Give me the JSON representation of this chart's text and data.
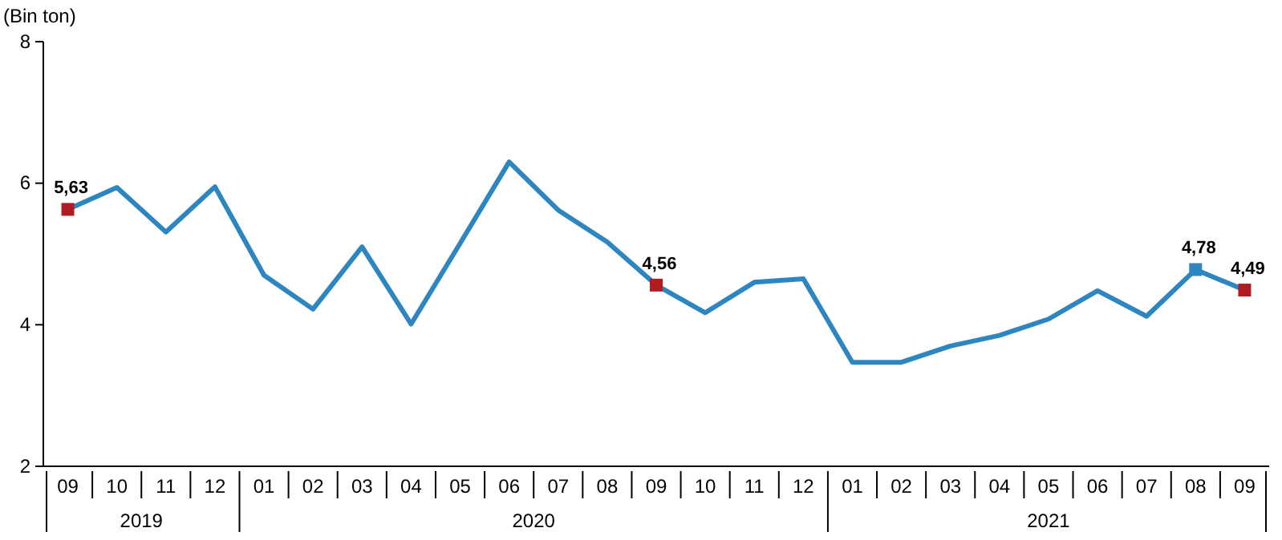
{
  "chart_data": {
    "type": "line",
    "ylabel": "(Bin ton)",
    "categories": [
      "09",
      "10",
      "11",
      "12",
      "01",
      "02",
      "03",
      "04",
      "05",
      "06",
      "07",
      "08",
      "09",
      "10",
      "11",
      "12",
      "01",
      "02",
      "03",
      "04",
      "05",
      "06",
      "07",
      "08",
      "09"
    ],
    "series": [
      {
        "color": "#2e86c1",
        "values": [
          5.63,
          5.94,
          5.31,
          5.95,
          4.7,
          4.22,
          5.1,
          4.01,
          5.15,
          6.3,
          5.62,
          5.17,
          4.56,
          4.17,
          4.6,
          4.65,
          3.47,
          3.47,
          3.7,
          3.85,
          4.08,
          4.48,
          4.12,
          4.78,
          4.49
        ],
        "colors": [
          "#b01c22",
          null,
          null,
          null,
          null,
          null,
          null,
          null,
          null,
          null,
          null,
          null,
          "#b01c22",
          null,
          null,
          null,
          null,
          null,
          null,
          null,
          null,
          null,
          null,
          "#2e86c1",
          "#b01c22"
        ],
        "value_labels": [
          "5,63",
          null,
          null,
          null,
          null,
          null,
          null,
          null,
          null,
          null,
          null,
          null,
          "4,56",
          null,
          null,
          null,
          null,
          null,
          null,
          null,
          null,
          null,
          null,
          "4,78",
          "4,49"
        ]
      }
    ],
    "line_style": "solid",
    "ylim": [
      2,
      8
    ],
    "yticks": [
      2,
      4,
      6,
      8
    ],
    "grid": false,
    "annotations": [
      "2019",
      "2020",
      "2021"
    ]
  }
}
